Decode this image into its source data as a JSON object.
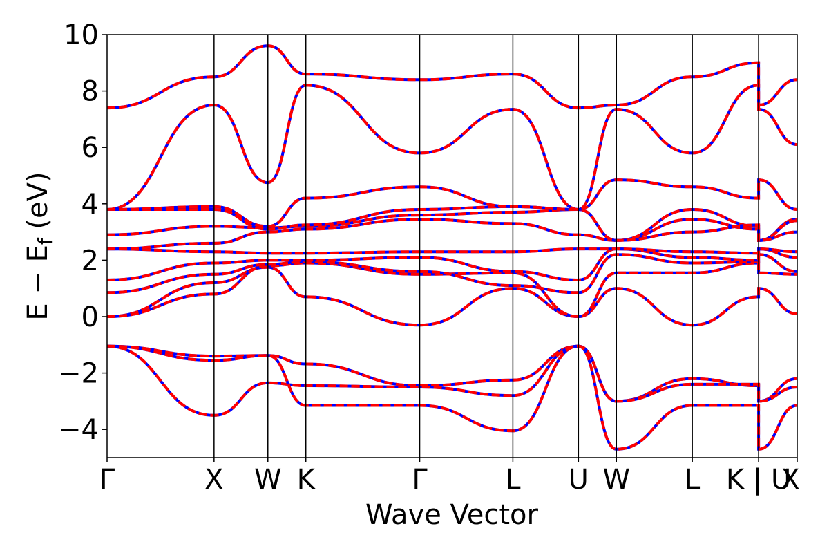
{
  "chart_data": {
    "type": "line",
    "xlabel": "Wave Vector",
    "ylabel_main": "E − E",
    "ylabel_sub": "f",
    "ylabel_unit": " (eV)",
    "ylim": [
      -5,
      10
    ],
    "yticks": [
      "10",
      "8",
      "6",
      "4",
      "2",
      "0",
      "−2",
      "−4"
    ],
    "ytick_values": [
      10,
      8,
      6,
      4,
      2,
      0,
      -2,
      -4
    ],
    "xlim": [
      0,
      1
    ],
    "kpoints": [
      {
        "label": "Γ",
        "x": 0.0
      },
      {
        "label": "X",
        "x": 0.155
      },
      {
        "label": "W",
        "x": 0.233
      },
      {
        "label": "K",
        "x": 0.288
      },
      {
        "label": "Γ",
        "x": 0.453
      },
      {
        "label": "L",
        "x": 0.588
      },
      {
        "label": "U",
        "x": 0.683
      },
      {
        "label": "W",
        "x": 0.738
      },
      {
        "label": "L",
        "x": 0.848
      },
      {
        "label": "K | U",
        "x": 0.944
      },
      {
        "label": "X",
        "x": 1.0
      }
    ],
    "colors": {
      "primary": "#ff0000",
      "overlay": "#0000ff",
      "axis": "#000000"
    },
    "series": [
      {
        "values": [
          -1.05,
          -1.4,
          -1.38,
          -1.68,
          -2.45,
          -2.25,
          -1.05,
          -3.0,
          -2.2,
          -2.45,
          -3.0,
          -2.2,
          -1.38
        ]
      },
      {
        "values": [
          -1.05,
          -3.5,
          -2.35,
          -2.45,
          -2.5,
          -2.8,
          -1.05,
          -3.0,
          -2.4,
          -2.4,
          -3.0,
          -2.5,
          -2.35
        ]
      },
      {
        "values": [
          -1.05,
          -1.55,
          -1.38,
          -3.15,
          -3.15,
          -4.05,
          -1.05,
          -4.7,
          -3.15,
          -3.15,
          -4.7,
          -3.15,
          -1.65
        ]
      },
      {
        "values": [
          0.0,
          1.2,
          1.75,
          0.7,
          -0.3,
          1.0,
          0.0,
          1.0,
          -0.3,
          0.7,
          1.0,
          0.1,
          1.75
        ]
      },
      {
        "values": [
          0.0,
          0.8,
          1.8,
          1.9,
          1.5,
          1.55,
          0.0,
          1.55,
          1.55,
          1.9,
          1.55,
          1.5,
          1.8
        ]
      },
      {
        "values": [
          0.85,
          1.5,
          1.85,
          1.95,
          1.6,
          1.1,
          0.85,
          2.2,
          1.9,
          1.95,
          2.2,
          1.6,
          1.85
        ]
      },
      {
        "values": [
          1.3,
          1.9,
          2.0,
          2.0,
          2.1,
          1.6,
          1.3,
          2.4,
          2.1,
          2.0,
          2.4,
          2.1,
          2.0
        ]
      },
      {
        "values": [
          2.4,
          2.3,
          2.25,
          2.25,
          2.3,
          2.3,
          2.4,
          2.4,
          2.3,
          2.25,
          2.4,
          2.3,
          2.25
        ]
      },
      {
        "values": [
          2.4,
          2.6,
          3.0,
          3.1,
          3.45,
          3.3,
          2.9,
          2.7,
          3.45,
          3.1,
          2.7,
          3.45,
          3.05
        ]
      },
      {
        "values": [
          2.9,
          3.2,
          3.15,
          3.2,
          3.6,
          3.7,
          3.8,
          2.7,
          3.8,
          3.2,
          2.7,
          3.4,
          3.2
        ]
      },
      {
        "values": [
          3.8,
          3.8,
          3.1,
          3.25,
          3.8,
          3.9,
          3.8,
          2.7,
          3.0,
          3.25,
          2.7,
          3.0,
          3.1
        ]
      },
      {
        "values": [
          3.8,
          3.9,
          3.2,
          4.2,
          4.6,
          3.9,
          3.8,
          4.85,
          4.6,
          4.2,
          4.85,
          3.8,
          3.2
        ]
      },
      {
        "values": [
          3.8,
          7.5,
          4.75,
          8.2,
          5.8,
          7.35,
          3.8,
          7.35,
          5.8,
          8.2,
          7.35,
          6.1,
          4.75
        ]
      },
      {
        "values": [
          7.4,
          8.5,
          9.6,
          8.6,
          8.4,
          8.6,
          7.4,
          7.5,
          8.5,
          9.0,
          7.5,
          8.4,
          9.65
        ]
      }
    ]
  }
}
